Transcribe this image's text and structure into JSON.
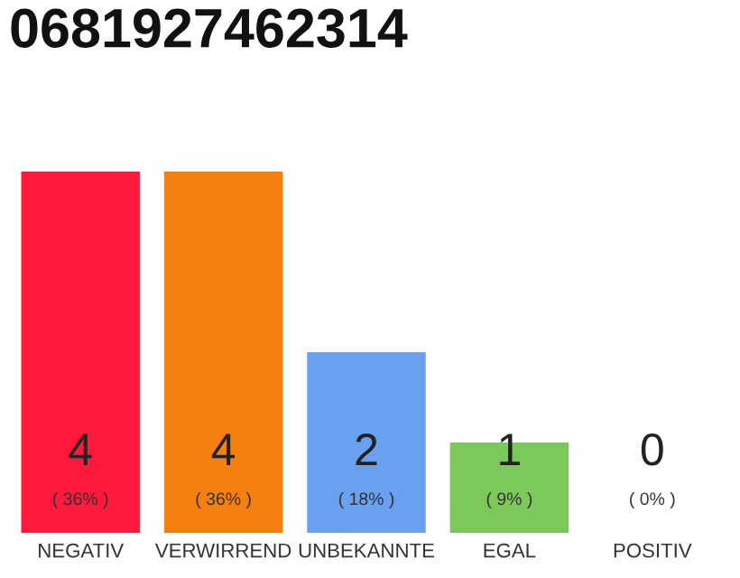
{
  "chart_data": {
    "type": "bar",
    "title": "0681927462314",
    "categories": [
      "NEGATIV",
      "VERWIRREND",
      "UNBEKANNTE",
      "EGAL",
      "POSITIV"
    ],
    "values": [
      4,
      4,
      2,
      1,
      0
    ],
    "colors": [
      "#ff1a3c",
      "#f5800f",
      "#6aa0f0",
      "#7dc85a",
      "#cccccc"
    ],
    "ylim": [
      0,
      4
    ],
    "data_labels": true,
    "annotations": [
      {
        "text": "( 36% )",
        "x": "NEGATIV",
        "y": 0
      },
      {
        "text": "( 36% )",
        "x": "VERWIRREND",
        "y": 0
      },
      {
        "text": "( 18% )",
        "x": "UNBEKANNTE",
        "y": 0
      },
      {
        "text": "( 9% )",
        "x": "EGAL",
        "y": 0
      },
      {
        "text": "( 0% )",
        "x": "POSITIV",
        "y": 0
      }
    ],
    "grid": false,
    "legend": false
  }
}
